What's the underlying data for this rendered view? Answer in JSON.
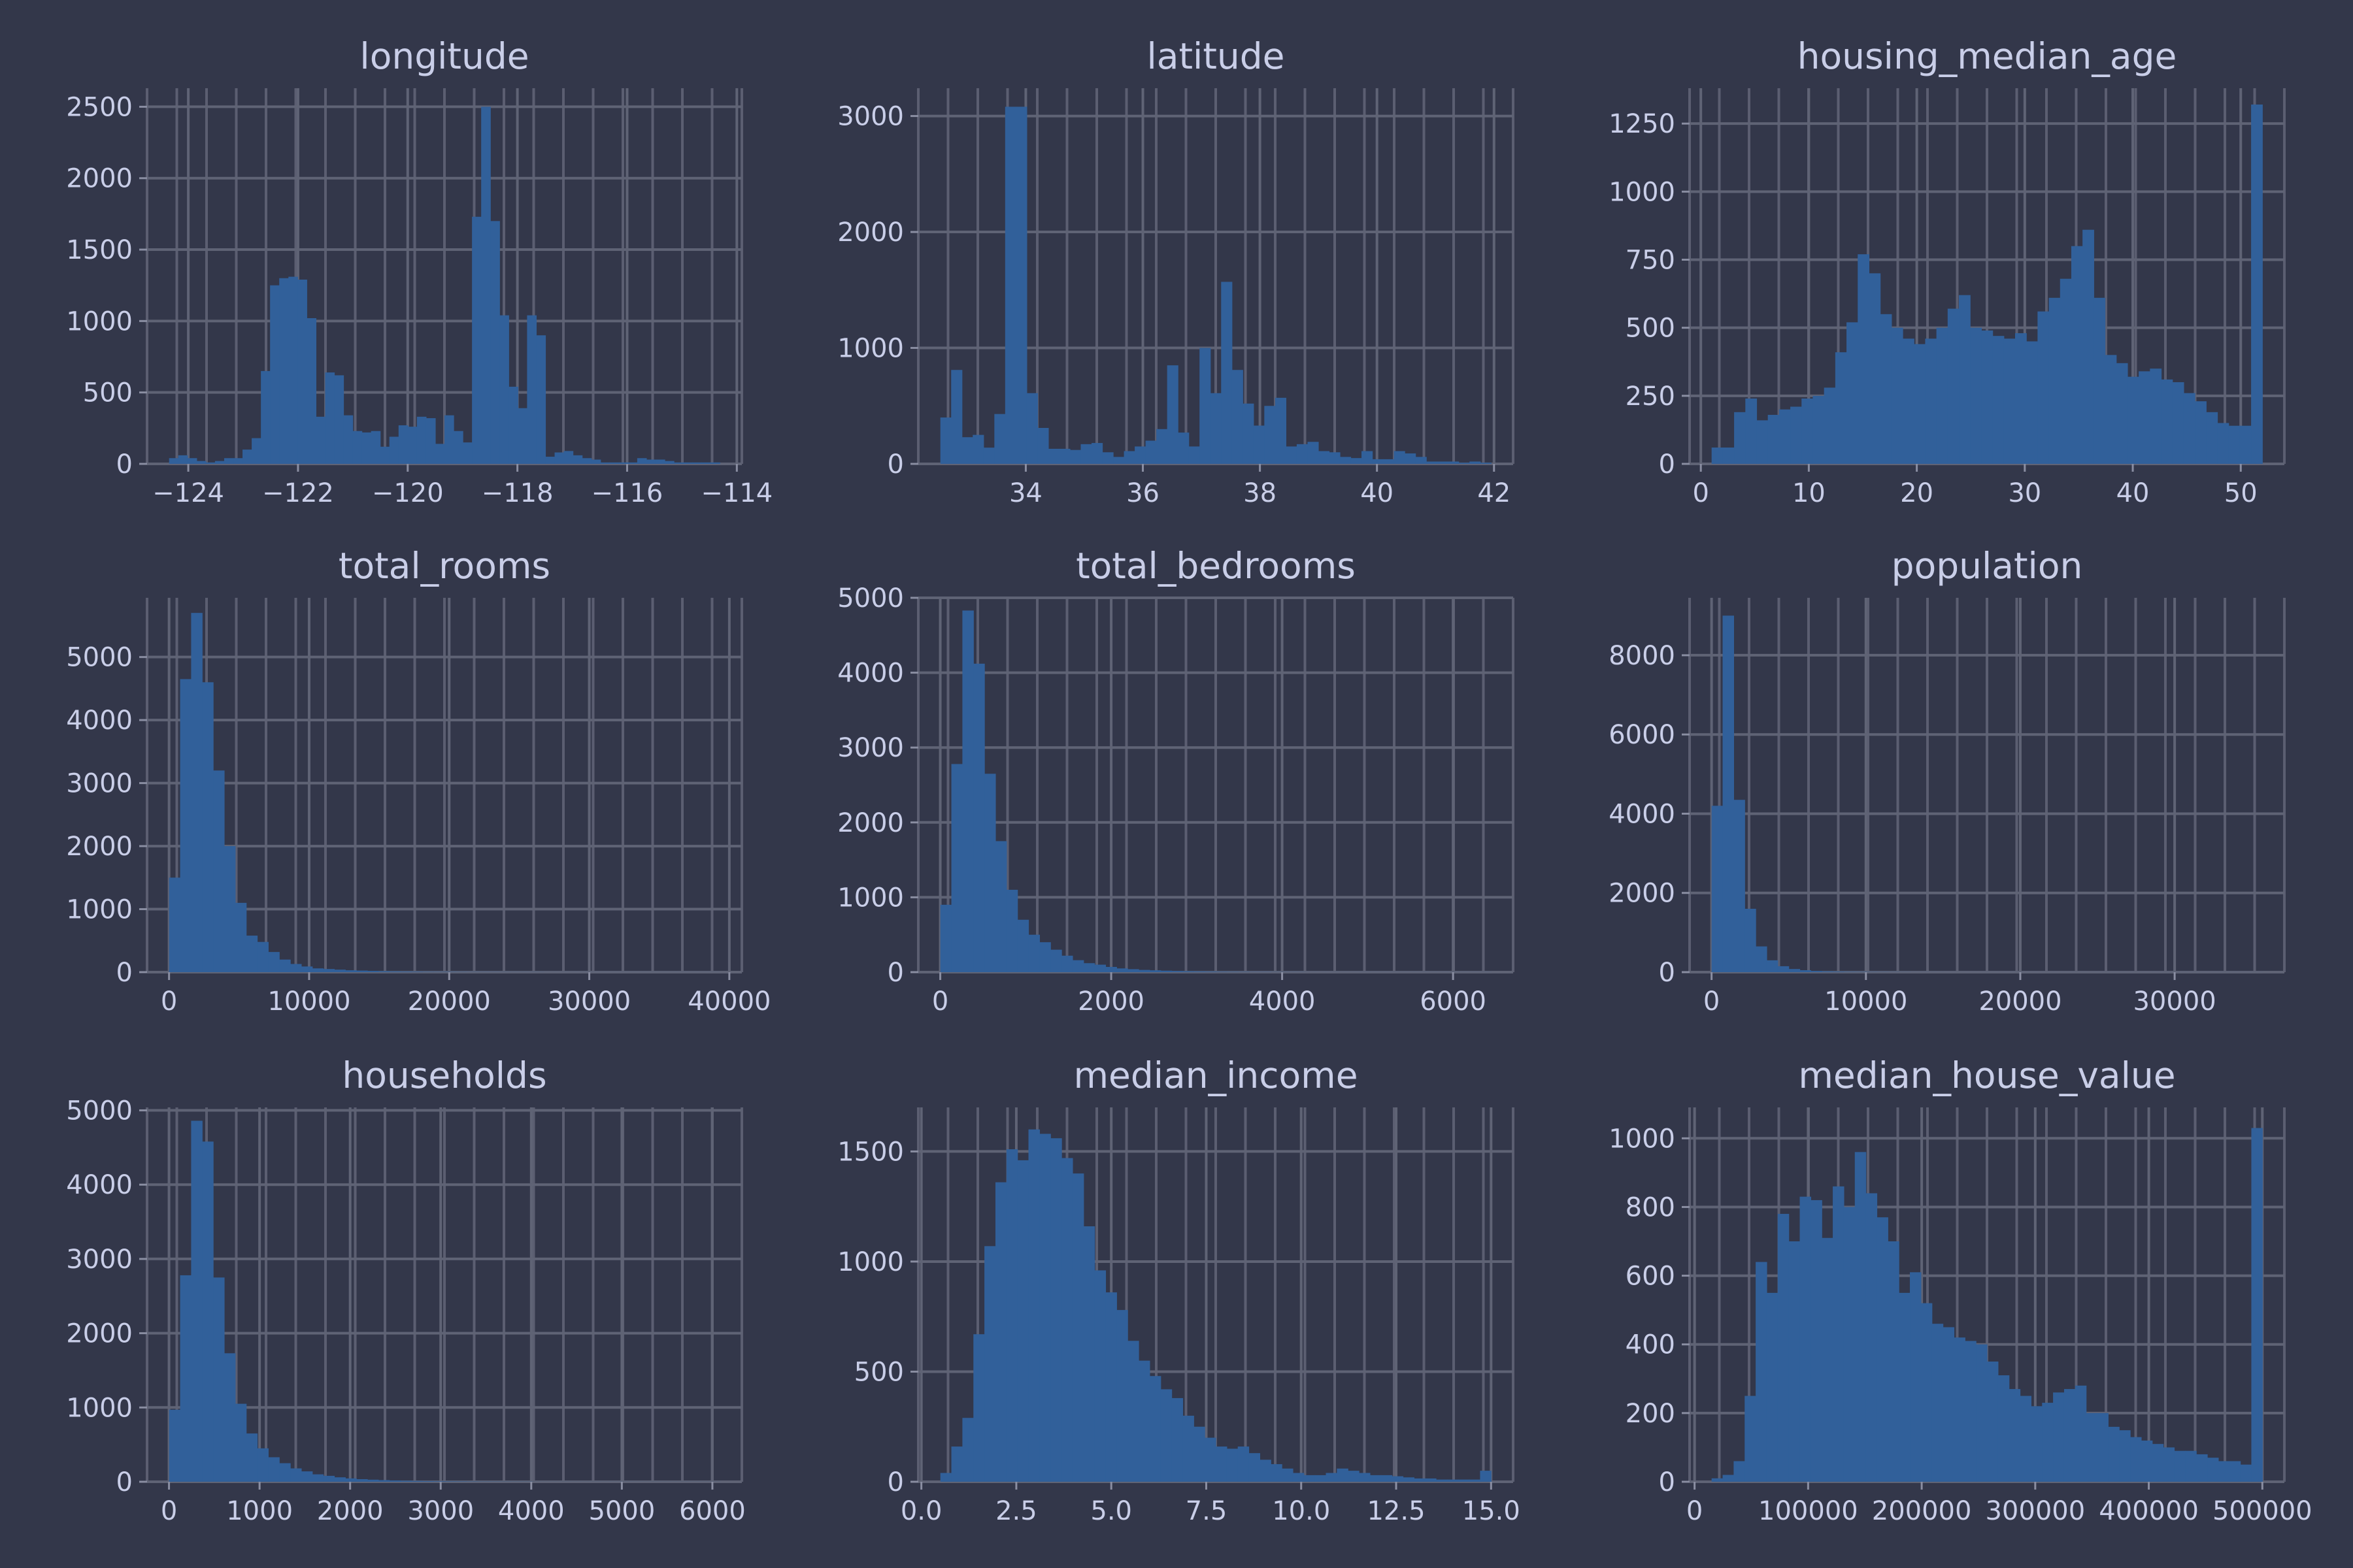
{
  "colors": {
    "background": "#33374a",
    "bar": "#31609a",
    "grid": "#5f6375",
    "text": "#c9cee8"
  },
  "chart_data": [
    {
      "type": "histogram",
      "title": "longitude",
      "xlim": [
        -124.35,
        -114.31
      ],
      "ylim": [
        0,
        2630
      ],
      "xticks": [
        -124,
        -122,
        -120,
        -118,
        -116,
        -114
      ],
      "xtick_labels": [
        "−124",
        "−122",
        "−120",
        "−118",
        "−116",
        "−114"
      ],
      "yticks": [
        0,
        500,
        1000,
        1500,
        2000,
        2500
      ],
      "ytick_labels": [
        "0",
        "500",
        "1000",
        "1500",
        "2000",
        "2500"
      ],
      "grid": true,
      "bin_range": [
        -124.35,
        -114.31
      ],
      "counts": [
        40,
        60,
        40,
        20,
        10,
        20,
        40,
        40,
        100,
        180,
        650,
        1250,
        1300,
        1310,
        1290,
        1020,
        330,
        640,
        620,
        340,
        230,
        220,
        230,
        120,
        190,
        270,
        260,
        330,
        320,
        140,
        340,
        230,
        150,
        1730,
        2500,
        1700,
        1040,
        540,
        390,
        1040,
        900,
        50,
        80,
        90,
        60,
        40,
        30,
        10,
        10,
        10,
        10,
        40,
        30,
        30,
        20,
        10,
        10,
        10,
        10,
        10
      ]
    },
    {
      "type": "histogram",
      "title": "latitude",
      "xlim": [
        32.54,
        41.95
      ],
      "ylim": [
        0,
        3240
      ],
      "xticks": [
        34,
        36,
        38,
        40,
        42
      ],
      "xtick_labels": [
        "34",
        "36",
        "38",
        "40",
        "42"
      ],
      "yticks": [
        0,
        1000,
        2000,
        3000
      ],
      "ytick_labels": [
        "0",
        "1000",
        "2000",
        "3000"
      ],
      "grid": true,
      "bin_range": [
        32.54,
        41.95
      ],
      "counts": [
        400,
        810,
        230,
        250,
        140,
        430,
        3080,
        3080,
        610,
        310,
        130,
        130,
        120,
        170,
        180,
        100,
        60,
        110,
        150,
        200,
        300,
        850,
        270,
        150,
        1000,
        610,
        1570,
        810,
        520,
        330,
        500,
        570,
        150,
        170,
        190,
        110,
        100,
        60,
        50,
        110,
        40,
        40,
        110,
        90,
        60,
        20,
        20,
        20,
        10,
        20,
        10
      ]
    },
    {
      "type": "histogram",
      "title": "housing_median_age",
      "xlim": [
        1,
        52
      ],
      "ylim": [
        0,
        1380
      ],
      "xticks": [
        0,
        10,
        20,
        30,
        40,
        50
      ],
      "xtick_labels": [
        "0",
        "10",
        "20",
        "30",
        "40",
        "50"
      ],
      "yticks": [
        0,
        250,
        500,
        750,
        1000,
        1250
      ],
      "ytick_labels": [
        "0",
        "250",
        "500",
        "750",
        "1000",
        "1250"
      ],
      "grid": true,
      "bin_range": [
        1,
        52
      ],
      "counts": [
        60,
        60,
        190,
        240,
        160,
        180,
        200,
        210,
        240,
        250,
        280,
        410,
        520,
        770,
        700,
        550,
        500,
        460,
        440,
        460,
        500,
        570,
        620,
        500,
        490,
        470,
        460,
        480,
        450,
        560,
        610,
        680,
        800,
        860,
        610,
        400,
        370,
        320,
        340,
        350,
        310,
        300,
        260,
        230,
        190,
        150,
        140,
        140,
        1320
      ]
    },
    {
      "type": "histogram",
      "title": "total_rooms",
      "xlim": [
        2,
        39320
      ],
      "ylim": [
        0,
        5940
      ],
      "xticks": [
        0,
        10000,
        20000,
        30000,
        40000
      ],
      "xtick_labels": [
        "0",
        "10000",
        "20000",
        "30000",
        "40000"
      ],
      "yticks": [
        0,
        1000,
        2000,
        3000,
        4000,
        5000
      ],
      "ytick_labels": [
        "0",
        "1000",
        "2000",
        "3000",
        "4000",
        "5000"
      ],
      "grid": true,
      "bin_range": [
        2,
        39320
      ],
      "counts": [
        1500,
        4650,
        5700,
        4600,
        3200,
        2000,
        1100,
        580,
        480,
        320,
        200,
        130,
        90,
        60,
        50,
        40,
        30,
        25,
        20,
        15,
        12,
        10,
        8,
        6,
        5,
        5,
        4,
        3,
        3,
        3,
        2,
        2,
        2,
        2,
        1,
        1,
        1,
        1,
        1,
        1,
        1,
        1,
        1,
        1,
        1,
        1,
        1,
        1,
        1,
        1
      ]
    },
    {
      "type": "histogram",
      "title": "total_bedrooms",
      "xlim": [
        1,
        6445
      ],
      "ylim": [
        0,
        5000
      ],
      "xticks": [
        0,
        2000,
        4000,
        6000
      ],
      "xtick_labels": [
        "0",
        "2000",
        "4000",
        "6000"
      ],
      "yticks": [
        0,
        1000,
        2000,
        3000,
        4000,
        5000
      ],
      "ytick_labels": [
        "0",
        "1000",
        "2000",
        "3000",
        "4000",
        "5000"
      ],
      "grid": true,
      "bin_range": [
        1,
        6445
      ],
      "counts": [
        900,
        2780,
        4830,
        4120,
        2650,
        1750,
        1100,
        700,
        500,
        400,
        300,
        220,
        160,
        120,
        100,
        70,
        50,
        40,
        30,
        25,
        20,
        15,
        12,
        10,
        8,
        6,
        5,
        4,
        3,
        3,
        2,
        2,
        2,
        1,
        1,
        1,
        1,
        1,
        1,
        1,
        1,
        1,
        1,
        1,
        1,
        1,
        1,
        1,
        1,
        1
      ]
    },
    {
      "type": "histogram",
      "title": "population",
      "xlim": [
        3,
        35682
      ],
      "ylim": [
        0,
        9450
      ],
      "xticks": [
        0,
        10000,
        20000,
        30000
      ],
      "xtick_labels": [
        "0",
        "10000",
        "20000",
        "30000"
      ],
      "yticks": [
        0,
        2000,
        4000,
        6000,
        8000
      ],
      "ytick_labels": [
        "0",
        "2000",
        "4000",
        "6000",
        "8000"
      ],
      "grid": true,
      "bin_range": [
        3,
        35682
      ],
      "counts": [
        4200,
        9000,
        4350,
        1600,
        650,
        300,
        150,
        80,
        50,
        30,
        20,
        15,
        10,
        8,
        6,
        5,
        4,
        3,
        2,
        2,
        2,
        1,
        1,
        1,
        1,
        1,
        1,
        1,
        1,
        1,
        1,
        1,
        1,
        1,
        1,
        1,
        1,
        1,
        1,
        1,
        1,
        1,
        1,
        1,
        1,
        1,
        1,
        1,
        1,
        1
      ]
    },
    {
      "type": "histogram",
      "title": "households",
      "xlim": [
        1,
        6082
      ],
      "ylim": [
        0,
        5040
      ],
      "xticks": [
        0,
        1000,
        2000,
        3000,
        4000,
        5000,
        6000
      ],
      "xtick_labels": [
        "0",
        "1000",
        "2000",
        "3000",
        "4000",
        "5000",
        "6000"
      ],
      "yticks": [
        0,
        1000,
        2000,
        3000,
        4000,
        5000
      ],
      "ytick_labels": [
        "0",
        "1000",
        "2000",
        "3000",
        "4000",
        "5000"
      ],
      "grid": true,
      "bin_range": [
        1,
        6082
      ],
      "counts": [
        970,
        2780,
        4860,
        4580,
        2750,
        1730,
        1050,
        650,
        450,
        330,
        250,
        180,
        140,
        100,
        80,
        60,
        45,
        35,
        28,
        22,
        18,
        14,
        11,
        9,
        7,
        6,
        5,
        4,
        3,
        3,
        2,
        2,
        2,
        1,
        1,
        1,
        1,
        1,
        1,
        1,
        1,
        1,
        1,
        1,
        1,
        1,
        1,
        1,
        1,
        1
      ]
    },
    {
      "type": "histogram",
      "title": "median_income",
      "xlim": [
        0.5,
        15.0
      ],
      "ylim": [
        0,
        1700
      ],
      "xticks": [
        0.0,
        2.5,
        5.0,
        7.5,
        10.0,
        12.5,
        15.0
      ],
      "xtick_labels": [
        "0.0",
        "2.5",
        "5.0",
        "7.5",
        "10.0",
        "12.5",
        "15.0"
      ],
      "yticks": [
        0,
        500,
        1000,
        1500
      ],
      "ytick_labels": [
        "0",
        "500",
        "1000",
        "1500"
      ],
      "grid": true,
      "bin_range": [
        0.5,
        15.0
      ],
      "counts": [
        40,
        160,
        290,
        670,
        1070,
        1360,
        1510,
        1460,
        1600,
        1580,
        1560,
        1470,
        1400,
        1160,
        960,
        860,
        780,
        640,
        550,
        480,
        420,
        380,
        300,
        250,
        200,
        160,
        150,
        160,
        130,
        100,
        80,
        60,
        40,
        30,
        30,
        40,
        60,
        50,
        40,
        30,
        30,
        25,
        20,
        15,
        15,
        10,
        10,
        10,
        10,
        50
      ]
    },
    {
      "type": "histogram",
      "title": "median_house_value",
      "xlim": [
        14999,
        500001
      ],
      "ylim": [
        0,
        1090
      ],
      "xticks": [
        0,
        100000,
        200000,
        300000,
        400000,
        500000
      ],
      "xtick_labels": [
        "0",
        "100000",
        "200000",
        "300000",
        "400000",
        "500000"
      ],
      "yticks": [
        0,
        200,
        400,
        600,
        800,
        1000
      ],
      "ytick_labels": [
        "0",
        "200",
        "400",
        "600",
        "800",
        "1000"
      ],
      "grid": true,
      "bin_range": [
        14999,
        500001
      ],
      "counts": [
        10,
        20,
        60,
        250,
        640,
        550,
        780,
        700,
        830,
        820,
        710,
        860,
        800,
        960,
        840,
        770,
        700,
        550,
        610,
        520,
        460,
        450,
        420,
        410,
        400,
        350,
        310,
        270,
        250,
        220,
        230,
        260,
        270,
        280,
        200,
        200,
        160,
        150,
        130,
        120,
        110,
        100,
        90,
        90,
        80,
        70,
        60,
        60,
        50,
        1030
      ]
    }
  ]
}
